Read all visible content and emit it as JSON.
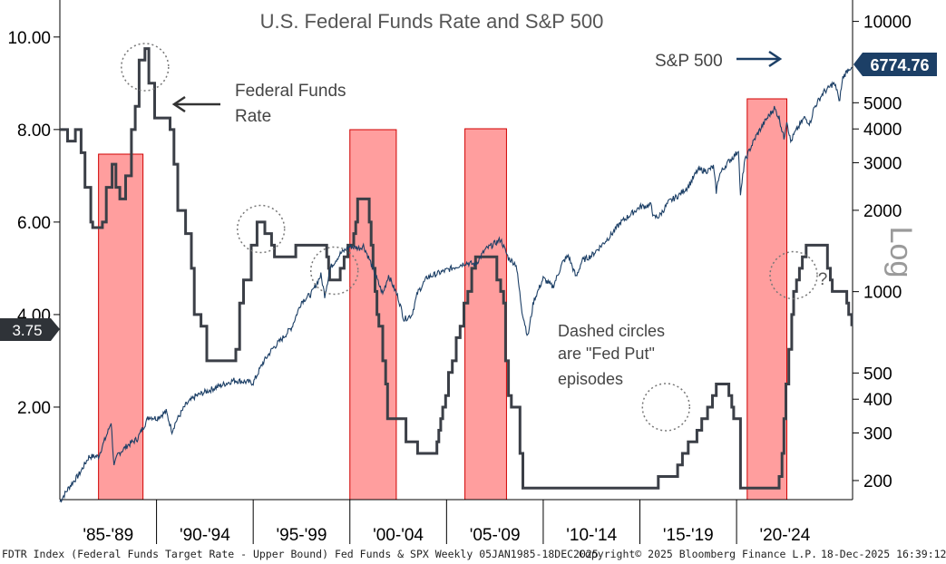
{
  "chart_data": {
    "type": "line",
    "title": "U.S. Federal Funds Rate and S&P 500",
    "x_categories": [
      "'85-'89",
      "'90-'94",
      "'95-'99",
      "'00-'04",
      "'05-'09",
      "'10-'14",
      "'15-'19",
      "'20-'24"
    ],
    "x_range": [
      1985.0,
      2026.0
    ],
    "left_axis": {
      "min": 0,
      "max": 10.8,
      "ticks": [
        "2.00",
        "4.00",
        "6.00",
        "8.00",
        "10.00"
      ],
      "tick_values": [
        2,
        4,
        6,
        8,
        10
      ]
    },
    "right_axis": {
      "scale": "log",
      "label": "Log",
      "min": 170,
      "max": 12000,
      "ticks": [
        "200",
        "300",
        "400",
        "500",
        "1000",
        "2000",
        "3000",
        "4000",
        "5000",
        "10000"
      ],
      "tick_values": [
        200,
        300,
        400,
        500,
        1000,
        2000,
        3000,
        4000,
        5000,
        10000
      ]
    },
    "current_values": {
      "fed_funds": "3.75",
      "spx": "6774.76"
    },
    "series": [
      {
        "name": "Federal Funds Rate",
        "axis": "left",
        "style": "step",
        "points": [
          [
            1985.0,
            8.0
          ],
          [
            1985.4,
            7.75
          ],
          [
            1985.8,
            8.0
          ],
          [
            1986.1,
            7.5
          ],
          [
            1986.3,
            6.75
          ],
          [
            1986.6,
            6.0
          ],
          [
            1986.7,
            5.88
          ],
          [
            1987.2,
            6.0
          ],
          [
            1987.4,
            6.75
          ],
          [
            1987.7,
            7.25
          ],
          [
            1987.9,
            6.75
          ],
          [
            1988.1,
            6.5
          ],
          [
            1988.4,
            7.0
          ],
          [
            1988.7,
            8.0
          ],
          [
            1988.9,
            8.5
          ],
          [
            1989.1,
            9.5
          ],
          [
            1989.4,
            9.75
          ],
          [
            1989.6,
            9.0
          ],
          [
            1989.9,
            8.25
          ],
          [
            1990.3,
            8.25
          ],
          [
            1990.7,
            8.0
          ],
          [
            1990.9,
            7.25
          ],
          [
            1991.1,
            6.25
          ],
          [
            1991.5,
            5.75
          ],
          [
            1991.8,
            5.0
          ],
          [
            1991.95,
            4.0
          ],
          [
            1992.3,
            3.75
          ],
          [
            1992.6,
            3.0
          ],
          [
            1994.1,
            3.25
          ],
          [
            1994.3,
            4.25
          ],
          [
            1994.5,
            4.75
          ],
          [
            1994.9,
            5.5
          ],
          [
            1995.2,
            6.0
          ],
          [
            1995.6,
            5.75
          ],
          [
            1995.95,
            5.5
          ],
          [
            1996.1,
            5.25
          ],
          [
            1997.2,
            5.5
          ],
          [
            1998.8,
            5.25
          ],
          [
            1998.9,
            5.0
          ],
          [
            1998.95,
            4.75
          ],
          [
            1999.5,
            5.0
          ],
          [
            1999.7,
            5.25
          ],
          [
            1999.9,
            5.5
          ],
          [
            2000.2,
            5.75
          ],
          [
            2000.3,
            6.0
          ],
          [
            2000.4,
            6.5
          ],
          [
            2001.0,
            6.0
          ],
          [
            2001.1,
            5.5
          ],
          [
            2001.2,
            5.0
          ],
          [
            2001.3,
            4.5
          ],
          [
            2001.4,
            4.0
          ],
          [
            2001.5,
            3.75
          ],
          [
            2001.7,
            3.0
          ],
          [
            2001.85,
            2.5
          ],
          [
            2001.95,
            1.75
          ],
          [
            2002.9,
            1.25
          ],
          [
            2003.5,
            1.0
          ],
          [
            2004.5,
            1.25
          ],
          [
            2004.6,
            1.5
          ],
          [
            2004.7,
            1.75
          ],
          [
            2004.8,
            2.0
          ],
          [
            2004.95,
            2.25
          ],
          [
            2005.1,
            2.75
          ],
          [
            2005.3,
            3.0
          ],
          [
            2005.5,
            3.5
          ],
          [
            2005.7,
            3.75
          ],
          [
            2005.9,
            4.25
          ],
          [
            2006.1,
            4.5
          ],
          [
            2006.3,
            5.0
          ],
          [
            2006.5,
            5.25
          ],
          [
            2007.6,
            4.75
          ],
          [
            2007.8,
            4.5
          ],
          [
            2007.95,
            4.25
          ],
          [
            2008.05,
            3.0
          ],
          [
            2008.2,
            2.25
          ],
          [
            2008.35,
            2.0
          ],
          [
            2008.8,
            1.0
          ],
          [
            2008.95,
            0.25
          ],
          [
            2015.95,
            0.5
          ],
          [
            2016.95,
            0.75
          ],
          [
            2017.2,
            1.0
          ],
          [
            2017.5,
            1.25
          ],
          [
            2017.95,
            1.5
          ],
          [
            2018.2,
            1.75
          ],
          [
            2018.5,
            2.0
          ],
          [
            2018.75,
            2.25
          ],
          [
            2018.95,
            2.5
          ],
          [
            2019.6,
            2.25
          ],
          [
            2019.75,
            2.0
          ],
          [
            2019.85,
            1.75
          ],
          [
            2020.2,
            0.25
          ],
          [
            2022.2,
            0.5
          ],
          [
            2022.35,
            1.0
          ],
          [
            2022.45,
            1.75
          ],
          [
            2022.55,
            2.5
          ],
          [
            2022.7,
            3.25
          ],
          [
            2022.85,
            4.0
          ],
          [
            2022.95,
            4.5
          ],
          [
            2023.1,
            4.75
          ],
          [
            2023.25,
            5.0
          ],
          [
            2023.4,
            5.25
          ],
          [
            2023.6,
            5.5
          ],
          [
            2024.7,
            5.0
          ],
          [
            2024.85,
            4.75
          ],
          [
            2024.95,
            4.5
          ],
          [
            2025.7,
            4.25
          ],
          [
            2025.8,
            4.0
          ],
          [
            2025.96,
            3.75
          ]
        ]
      },
      {
        "name": "S&P 500",
        "axis": "right",
        "style": "line",
        "points": [
          [
            1985.0,
            167
          ],
          [
            1985.5,
            190
          ],
          [
            1986.0,
            211
          ],
          [
            1986.5,
            245
          ],
          [
            1987.0,
            246
          ],
          [
            1987.5,
            305
          ],
          [
            1987.65,
            330
          ],
          [
            1987.8,
            225
          ],
          [
            1988.0,
            250
          ],
          [
            1988.5,
            270
          ],
          [
            1989.0,
            285
          ],
          [
            1989.6,
            345
          ],
          [
            1990.0,
            340
          ],
          [
            1990.5,
            360
          ],
          [
            1990.8,
            305
          ],
          [
            1991.0,
            330
          ],
          [
            1991.5,
            380
          ],
          [
            1992.0,
            410
          ],
          [
            1993.0,
            440
          ],
          [
            1994.0,
            470
          ],
          [
            1995.0,
            460
          ],
          [
            1995.5,
            545
          ],
          [
            1996.0,
            615
          ],
          [
            1996.5,
            670
          ],
          [
            1997.0,
            740
          ],
          [
            1997.5,
            920
          ],
          [
            1998.0,
            980
          ],
          [
            1998.5,
            1150
          ],
          [
            1998.7,
            970
          ],
          [
            1999.0,
            1230
          ],
          [
            1999.5,
            1380
          ],
          [
            2000.0,
            1470
          ],
          [
            2000.5,
            1450
          ],
          [
            2000.7,
            1480
          ],
          [
            2001.0,
            1320
          ],
          [
            2001.3,
            1160
          ],
          [
            2001.7,
            980
          ],
          [
            2002.0,
            1150
          ],
          [
            2002.5,
            950
          ],
          [
            2002.8,
            790
          ],
          [
            2003.2,
            820
          ],
          [
            2003.5,
            990
          ],
          [
            2004.0,
            1130
          ],
          [
            2005.0,
            1200
          ],
          [
            2006.0,
            1280
          ],
          [
            2006.5,
            1260
          ],
          [
            2007.0,
            1430
          ],
          [
            2007.8,
            1560
          ],
          [
            2008.2,
            1330
          ],
          [
            2008.6,
            1260
          ],
          [
            2008.9,
            850
          ],
          [
            2009.2,
            680
          ],
          [
            2009.5,
            920
          ],
          [
            2010.0,
            1120
          ],
          [
            2010.5,
            1040
          ],
          [
            2011.0,
            1280
          ],
          [
            2011.3,
            1360
          ],
          [
            2011.7,
            1130
          ],
          [
            2012.0,
            1300
          ],
          [
            2012.5,
            1360
          ],
          [
            2013.0,
            1480
          ],
          [
            2013.5,
            1620
          ],
          [
            2014.0,
            1800
          ],
          [
            2015.0,
            2060
          ],
          [
            2015.6,
            2090
          ],
          [
            2015.7,
            1880
          ],
          [
            2016.0,
            1900
          ],
          [
            2016.5,
            2150
          ],
          [
            2017.0,
            2270
          ],
          [
            2017.5,
            2450
          ],
          [
            2018.0,
            2820
          ],
          [
            2018.5,
            2800
          ],
          [
            2018.8,
            2900
          ],
          [
            2018.95,
            2350
          ],
          [
            2019.1,
            2700
          ],
          [
            2019.5,
            2980
          ],
          [
            2020.0,
            3250
          ],
          [
            2020.1,
            3380
          ],
          [
            2020.2,
            2240
          ],
          [
            2020.4,
            3000
          ],
          [
            2020.7,
            3380
          ],
          [
            2021.0,
            3750
          ],
          [
            2021.5,
            4300
          ],
          [
            2021.95,
            4780
          ],
          [
            2022.2,
            4400
          ],
          [
            2022.45,
            3700
          ],
          [
            2022.6,
            4300
          ],
          [
            2022.8,
            3580
          ],
          [
            2023.0,
            3850
          ],
          [
            2023.5,
            4400
          ],
          [
            2023.8,
            4200
          ],
          [
            2024.0,
            4770
          ],
          [
            2024.5,
            5480
          ],
          [
            2024.7,
            5600
          ],
          [
            2025.0,
            5900
          ],
          [
            2025.2,
            5600
          ],
          [
            2025.3,
            4980
          ],
          [
            2025.5,
            6200
          ],
          [
            2025.8,
            6700
          ],
          [
            2025.96,
            6775
          ]
        ]
      }
    ],
    "recession_bands": [
      [
        1987.0,
        1989.3
      ],
      [
        2000.0,
        2002.4
      ],
      [
        2005.95,
        2008.1
      ],
      [
        2020.55,
        2022.6
      ]
    ],
    "fed_put_circles": [
      [
        1989.4,
        9.35
      ],
      [
        1995.4,
        5.85
      ],
      [
        1999.2,
        4.95
      ],
      [
        2016.35,
        2.0
      ],
      [
        2022.95,
        4.85
      ]
    ],
    "annotations": {
      "fed_funds_line1": "Federal Funds",
      "fed_funds_line2": "Rate",
      "spx_label": "S&P 500",
      "note_line1": "Dashed circles",
      "note_line2": "are \"Fed Put\"",
      "note_line3": "episodes",
      "question_mark": "?"
    },
    "colors": {
      "fed_funds_line": "#3b3f47",
      "spx_line": "#1c3f66",
      "recession_fill": "#ff9e9e",
      "recession_edge": "#d00000",
      "title_text": "#555555",
      "current_fed_tag": "#2f3338",
      "current_spx_tag": "#1c3f66",
      "axis_text": "#000000",
      "log_label": "#9a9a9a"
    }
  },
  "footer": {
    "source": "FDTR Index (Federal Funds Target Rate - Upper Bound) Fed Funds & SPX Weekly 05JAN1985-18DEC2025",
    "copyright": "Copyright© 2025 Bloomberg Finance L.P.",
    "timestamp": "18-Dec-2025 16:39:12"
  }
}
